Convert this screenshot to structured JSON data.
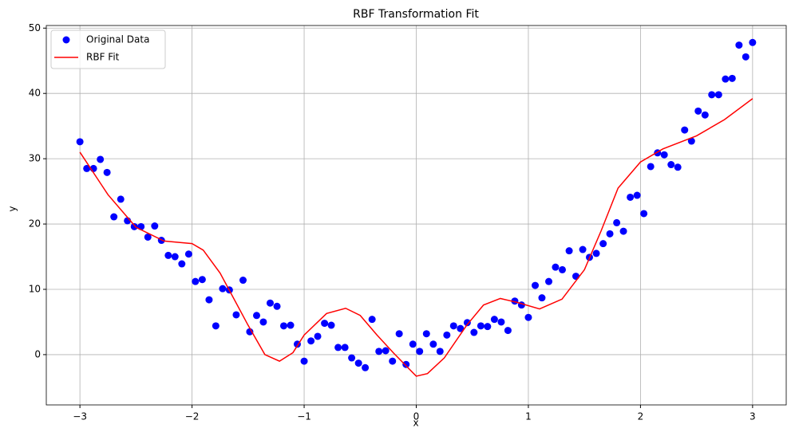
{
  "chart_data": {
    "type": "scatter",
    "title": "RBF Transformation Fit",
    "x_label": "x",
    "y_label": "y",
    "xlim": [
      -3.3,
      3.3
    ],
    "ylim": [
      -7.7,
      50.4
    ],
    "xticks": [
      {
        "value": -3,
        "label": "−3"
      },
      {
        "value": -2,
        "label": "−2"
      },
      {
        "value": -1,
        "label": "−1"
      },
      0,
      1,
      2,
      3
    ],
    "yticks": [
      0,
      10,
      20,
      30,
      40,
      50
    ],
    "grid": true,
    "legend": "upper left",
    "series": [
      {
        "name": "Original Data",
        "type": "scatter",
        "color": "#0000ff",
        "x": [
          -3,
          -2.939,
          -2.879,
          -2.818,
          -2.758,
          -2.697,
          -2.636,
          -2.576,
          -2.515,
          -2.455,
          -2.394,
          -2.333,
          -2.273,
          -2.212,
          -2.152,
          -2.091,
          -2.03,
          -1.97,
          -1.909,
          -1.848,
          -1.788,
          -1.727,
          -1.667,
          -1.606,
          -1.545,
          -1.485,
          -1.424,
          -1.364,
          -1.303,
          -1.242,
          -1.182,
          -1.121,
          -1.061,
          -1.0,
          -0.939,
          -0.879,
          -0.818,
          -0.758,
          -0.697,
          -0.636,
          -0.576,
          -0.515,
          -0.455,
          -0.394,
          -0.333,
          -0.273,
          -0.212,
          -0.152,
          -0.091,
          -0.03,
          0.03,
          0.091,
          0.152,
          0.212,
          0.273,
          0.333,
          0.394,
          0.455,
          0.515,
          0.576,
          0.636,
          0.697,
          0.758,
          0.818,
          0.879,
          0.939,
          1.0,
          1.061,
          1.121,
          1.182,
          1.242,
          1.303,
          1.364,
          1.424,
          1.485,
          1.545,
          1.606,
          1.667,
          1.727,
          1.788,
          1.848,
          1.909,
          1.97,
          2.03,
          2.091,
          2.152,
          2.212,
          2.273,
          2.333,
          2.394,
          2.455,
          2.515,
          2.576,
          2.636,
          2.697,
          2.758,
          2.818,
          2.879,
          2.939,
          3.0
        ],
        "values": [
          32.6,
          28.5,
          28.5,
          29.9,
          27.9,
          21.1,
          23.8,
          20.5,
          19.6,
          19.6,
          18.0,
          19.7,
          17.5,
          15.2,
          15.0,
          13.9,
          15.4,
          11.2,
          11.5,
          8.4,
          4.4,
          10.1,
          9.9,
          6.1,
          11.4,
          3.5,
          6.0,
          5.0,
          7.9,
          7.4,
          4.4,
          4.5,
          1.6,
          -1.0,
          2.1,
          2.8,
          4.8,
          4.5,
          1.1,
          1.1,
          -0.5,
          -1.3,
          -2.0,
          5.4,
          0.5,
          0.6,
          -1.0,
          3.2,
          -1.5,
          1.6,
          0.5,
          3.2,
          1.6,
          0.5,
          3.0,
          4.4,
          4.0,
          4.9,
          3.4,
          4.4,
          4.3,
          5.4,
          5.0,
          3.7,
          8.2,
          7.6,
          5.7,
          10.6,
          8.7,
          11.2,
          13.4,
          13.0,
          15.9,
          12.0,
          16.1,
          14.9,
          15.5,
          17.0,
          18.5,
          20.2,
          18.9,
          24.1,
          24.4,
          21.6,
          28.8,
          30.9,
          30.6,
          29.1,
          28.7,
          34.4,
          32.7,
          37.3,
          36.7,
          39.8,
          39.8,
          42.2,
          42.3,
          47.4,
          45.6,
          47.8
        ]
      },
      {
        "name": "RBF Fit",
        "type": "line",
        "color": "#ff0000",
        "x": [
          -3,
          -2.75,
          -2.5,
          -2.25,
          -2.0,
          -1.9,
          -1.75,
          -1.5,
          -1.35,
          -1.22,
          -1.1,
          -1.0,
          -0.8,
          -0.63,
          -0.5,
          -0.35,
          -0.2,
          0,
          0.1,
          0.25,
          0.45,
          0.6,
          0.75,
          0.9,
          1.1,
          1.3,
          1.5,
          1.65,
          1.8,
          2.0,
          2.2,
          2.5,
          2.75,
          3.0
        ],
        "values": [
          31,
          24.5,
          19.5,
          17.4,
          17.0,
          16.0,
          12.5,
          4.5,
          0,
          -1,
          0.3,
          3,
          6.3,
          7.1,
          6.0,
          3.0,
          0.2,
          -3.3,
          -2.9,
          -0.5,
          4.5,
          7.6,
          8.6,
          8.0,
          7.0,
          8.5,
          13.0,
          19,
          25.5,
          29.5,
          31.5,
          33.5,
          36,
          39.2
        ]
      }
    ]
  }
}
